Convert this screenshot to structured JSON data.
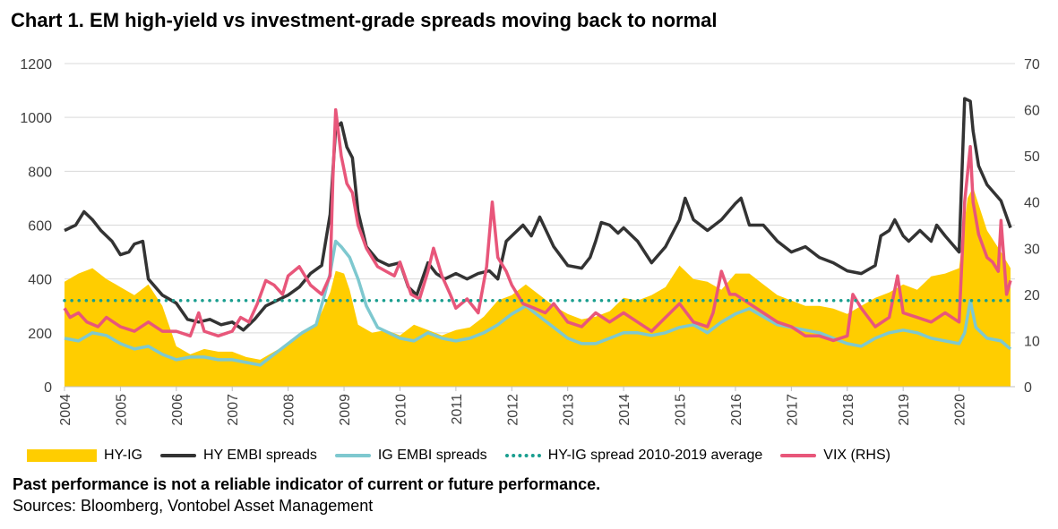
{
  "title": "Chart 1. EM high-yield vs investment-grade spreads moving back to normal",
  "footnote": "Past performance is not a reliable indicator of current or future performance.",
  "source": "Sources: Bloomberg, Vontobel Asset Management",
  "colors": {
    "hy_ig": "#ffcd00",
    "hy_embi": "#333333",
    "ig_embi": "#7ec8cf",
    "average": "#1a9e8f",
    "vix": "#e8567a",
    "grid": "#d9d9d9"
  },
  "chart_data": {
    "type": "line",
    "title": "Chart 1. EM high-yield vs investment-grade spreads moving back to normal",
    "xlabel": "",
    "ylabel": "",
    "y2label": "",
    "ylim": [
      0,
      1200
    ],
    "y2lim": [
      0,
      70
    ],
    "yticks": [
      "0",
      "200",
      "400",
      "600",
      "800",
      "1000",
      "1200"
    ],
    "y2ticks": [
      "0",
      "10",
      "20",
      "30",
      "40",
      "50",
      "60",
      "70"
    ],
    "xlim": [
      2004,
      2021
    ],
    "xticks": [
      "2004",
      "2005",
      "2006",
      "2007",
      "2008",
      "2009",
      "2010",
      "2011",
      "2012",
      "2013",
      "2014",
      "2015",
      "2016",
      "2017",
      "2018",
      "2019",
      "2020"
    ],
    "grid": "horizontal",
    "legend_position": "bottom",
    "series": [
      {
        "name": "HY-IG",
        "type": "area",
        "axis": "left",
        "x": [
          2004.0,
          2004.25,
          2004.5,
          2004.75,
          2005.0,
          2005.25,
          2005.5,
          2005.75,
          2006.0,
          2006.25,
          2006.5,
          2006.75,
          2007.0,
          2007.25,
          2007.5,
          2007.75,
          2008.0,
          2008.25,
          2008.5,
          2008.75,
          2008.85,
          2009.0,
          2009.1,
          2009.25,
          2009.5,
          2009.75,
          2010.0,
          2010.25,
          2010.5,
          2010.75,
          2011.0,
          2011.25,
          2011.5,
          2011.75,
          2012.0,
          2012.25,
          2012.5,
          2012.75,
          2013.0,
          2013.25,
          2013.5,
          2013.75,
          2014.0,
          2014.25,
          2014.5,
          2014.75,
          2015.0,
          2015.25,
          2015.5,
          2015.75,
          2016.0,
          2016.25,
          2016.5,
          2016.75,
          2017.0,
          2017.25,
          2017.5,
          2017.75,
          2018.0,
          2018.25,
          2018.5,
          2018.75,
          2019.0,
          2019.25,
          2019.5,
          2019.75,
          2020.0,
          2020.15,
          2020.25,
          2020.5,
          2020.75,
          2020.92
        ],
        "y": [
          390,
          420,
          440,
          400,
          370,
          340,
          380,
          300,
          150,
          120,
          140,
          130,
          130,
          110,
          100,
          130,
          160,
          200,
          230,
          350,
          430,
          420,
          360,
          230,
          200,
          210,
          190,
          230,
          210,
          190,
          210,
          220,
          260,
          320,
          340,
          380,
          340,
          300,
          270,
          250,
          260,
          280,
          330,
          320,
          340,
          370,
          450,
          400,
          390,
          360,
          420,
          420,
          380,
          340,
          320,
          300,
          300,
          290,
          270,
          300,
          330,
          350,
          380,
          360,
          410,
          420,
          440,
          700,
          740,
          580,
          500,
          440
        ]
      },
      {
        "name": "HY EMBI spreads",
        "type": "line",
        "axis": "left",
        "x": [
          2004.0,
          2004.1,
          2004.2,
          2004.35,
          2004.5,
          2004.65,
          2004.85,
          2005.0,
          2005.15,
          2005.25,
          2005.4,
          2005.5,
          2005.75,
          2006.0,
          2006.2,
          2006.4,
          2006.6,
          2006.8,
          2007.0,
          2007.2,
          2007.4,
          2007.6,
          2007.8,
          2008.0,
          2008.2,
          2008.4,
          2008.6,
          2008.75,
          2008.85,
          2008.95,
          2009.05,
          2009.15,
          2009.25,
          2009.4,
          2009.6,
          2009.8,
          2010.0,
          2010.15,
          2010.3,
          2010.5,
          2010.65,
          2010.8,
          2011.0,
          2011.2,
          2011.4,
          2011.6,
          2011.75,
          2011.9,
          2012.0,
          2012.2,
          2012.35,
          2012.5,
          2012.75,
          2013.0,
          2013.25,
          2013.4,
          2013.5,
          2013.6,
          2013.75,
          2013.9,
          2014.0,
          2014.25,
          2014.5,
          2014.75,
          2015.0,
          2015.1,
          2015.25,
          2015.5,
          2015.75,
          2016.0,
          2016.1,
          2016.25,
          2016.5,
          2016.75,
          2017.0,
          2017.25,
          2017.5,
          2017.75,
          2018.0,
          2018.25,
          2018.5,
          2018.6,
          2018.75,
          2018.85,
          2019.0,
          2019.1,
          2019.3,
          2019.5,
          2019.6,
          2019.75,
          2020.0,
          2020.1,
          2020.2,
          2020.25,
          2020.35,
          2020.5,
          2020.75,
          2020.92
        ],
        "y": [
          580,
          590,
          600,
          650,
          620,
          580,
          540,
          490,
          500,
          530,
          540,
          400,
          340,
          310,
          250,
          240,
          250,
          230,
          240,
          210,
          250,
          300,
          320,
          340,
          370,
          420,
          450,
          640,
          960,
          980,
          890,
          850,
          650,
          520,
          470,
          450,
          460,
          370,
          340,
          460,
          420,
          400,
          420,
          400,
          420,
          430,
          400,
          540,
          560,
          600,
          560,
          630,
          520,
          450,
          440,
          480,
          540,
          610,
          600,
          570,
          590,
          540,
          460,
          520,
          620,
          700,
          620,
          580,
          620,
          680,
          700,
          600,
          600,
          540,
          500,
          520,
          480,
          460,
          430,
          420,
          450,
          560,
          580,
          620,
          560,
          540,
          580,
          540,
          600,
          560,
          500,
          1070,
          1060,
          950,
          820,
          750,
          690,
          590
        ]
      },
      {
        "name": "IG EMBI spreads",
        "type": "line",
        "axis": "left",
        "x": [
          2004.0,
          2004.25,
          2004.5,
          2004.75,
          2005.0,
          2005.25,
          2005.5,
          2005.75,
          2006.0,
          2006.25,
          2006.5,
          2006.75,
          2007.0,
          2007.25,
          2007.5,
          2007.75,
          2008.0,
          2008.25,
          2008.5,
          2008.65,
          2008.75,
          2008.85,
          2008.95,
          2009.1,
          2009.25,
          2009.4,
          2009.6,
          2009.8,
          2010.0,
          2010.25,
          2010.5,
          2010.75,
          2011.0,
          2011.25,
          2011.5,
          2011.75,
          2012.0,
          2012.25,
          2012.5,
          2012.75,
          2013.0,
          2013.25,
          2013.5,
          2013.75,
          2014.0,
          2014.25,
          2014.5,
          2014.75,
          2015.0,
          2015.25,
          2015.5,
          2015.75,
          2016.0,
          2016.25,
          2016.5,
          2016.75,
          2017.0,
          2017.25,
          2017.5,
          2017.75,
          2018.0,
          2018.25,
          2018.5,
          2018.75,
          2019.0,
          2019.25,
          2019.5,
          2019.75,
          2020.0,
          2020.1,
          2020.2,
          2020.3,
          2020.5,
          2020.75,
          2020.92
        ],
        "y": [
          180,
          170,
          200,
          190,
          160,
          140,
          150,
          120,
          100,
          110,
          110,
          100,
          100,
          90,
          80,
          120,
          160,
          200,
          230,
          340,
          420,
          540,
          520,
          480,
          400,
          300,
          220,
          200,
          180,
          170,
          200,
          180,
          170,
          180,
          200,
          230,
          270,
          300,
          260,
          220,
          180,
          160,
          160,
          180,
          200,
          200,
          190,
          200,
          220,
          230,
          200,
          240,
          270,
          290,
          260,
          230,
          220,
          210,
          200,
          180,
          160,
          150,
          180,
          200,
          210,
          200,
          180,
          170,
          160,
          200,
          320,
          220,
          180,
          170,
          140
        ]
      },
      {
        "name": "HY-IG spread 2010-2019 average",
        "type": "line",
        "axis": "left",
        "style": "dotted",
        "x": [
          2004.0,
          2020.92
        ],
        "y": [
          320,
          320
        ]
      },
      {
        "name": "VIX (RHS)",
        "type": "line",
        "axis": "right",
        "x": [
          2004.0,
          2004.1,
          2004.25,
          2004.4,
          2004.6,
          2004.75,
          2005.0,
          2005.25,
          2005.5,
          2005.75,
          2006.0,
          2006.25,
          2006.4,
          2006.5,
          2006.75,
          2007.0,
          2007.15,
          2007.3,
          2007.45,
          2007.6,
          2007.75,
          2007.9,
          2008.0,
          2008.2,
          2008.4,
          2008.6,
          2008.75,
          2008.8,
          2008.85,
          2008.95,
          2009.05,
          2009.15,
          2009.25,
          2009.4,
          2009.6,
          2009.75,
          2009.9,
          2010.0,
          2010.2,
          2010.35,
          2010.5,
          2010.6,
          2010.75,
          2010.9,
          2011.0,
          2011.2,
          2011.4,
          2011.55,
          2011.65,
          2011.75,
          2011.9,
          2012.0,
          2012.2,
          2012.4,
          2012.6,
          2012.75,
          2013.0,
          2013.25,
          2013.5,
          2013.75,
          2014.0,
          2014.25,
          2014.5,
          2014.75,
          2015.0,
          2015.25,
          2015.5,
          2015.6,
          2015.75,
          2015.9,
          2016.0,
          2016.25,
          2016.5,
          2016.75,
          2017.0,
          2017.25,
          2017.5,
          2017.75,
          2018.0,
          2018.1,
          2018.25,
          2018.5,
          2018.75,
          2018.9,
          2019.0,
          2019.25,
          2019.5,
          2019.75,
          2020.0,
          2020.1,
          2020.2,
          2020.25,
          2020.35,
          2020.5,
          2020.6,
          2020.7,
          2020.75,
          2020.85,
          2020.92
        ],
        "y": [
          17,
          15,
          16,
          14,
          13,
          15,
          13,
          12,
          14,
          12,
          12,
          11,
          16,
          12,
          11,
          12,
          15,
          14,
          18,
          23,
          22,
          20,
          24,
          26,
          22,
          20,
          24,
          45,
          60,
          50,
          44,
          42,
          35,
          30,
          26,
          25,
          24,
          27,
          20,
          19,
          25,
          30,
          24,
          20,
          17,
          19,
          16,
          26,
          40,
          28,
          25,
          22,
          18,
          17,
          16,
          18,
          14,
          13,
          16,
          14,
          16,
          14,
          12,
          15,
          18,
          14,
          13,
          16,
          25,
          20,
          20,
          18,
          16,
          14,
          13,
          11,
          11,
          10,
          11,
          20,
          17,
          13,
          15,
          24,
          16,
          15,
          14,
          16,
          14,
          40,
          52,
          40,
          33,
          28,
          27,
          25,
          36,
          20,
          23
        ]
      }
    ]
  }
}
